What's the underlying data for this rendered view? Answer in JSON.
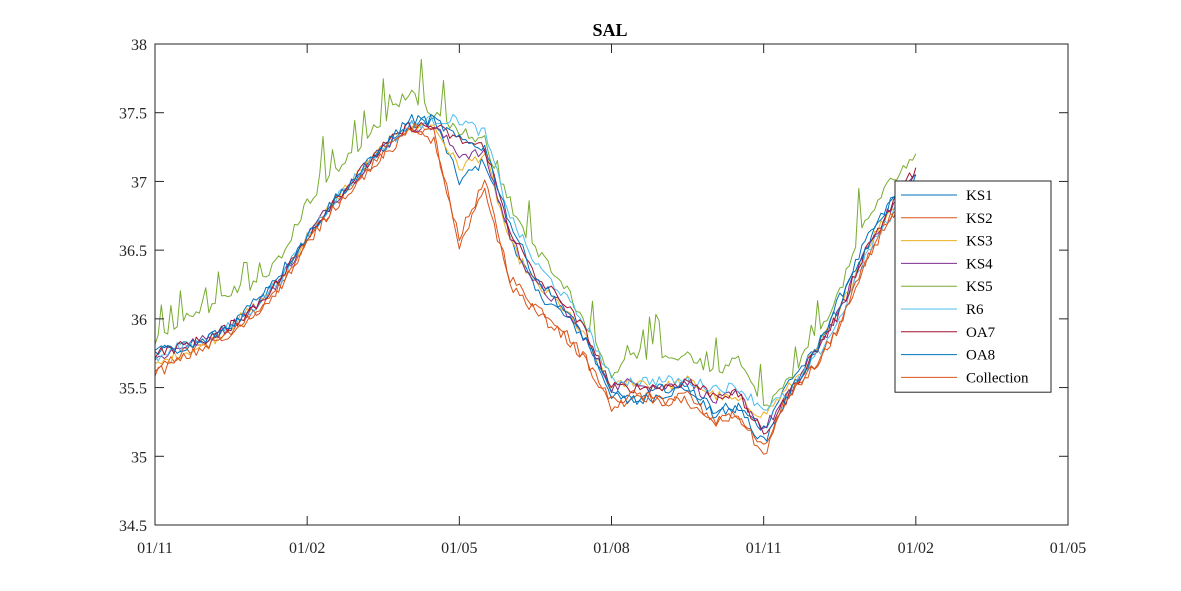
{
  "chart_data": {
    "type": "line",
    "title": "SAL",
    "xlabel": "",
    "ylabel": "",
    "ylim": [
      34.5,
      38
    ],
    "yticks": [
      "34.5",
      "35",
      "35.5",
      "36",
      "36.5",
      "37",
      "37.5",
      "38"
    ],
    "xticks": [
      "01/11",
      "01/02",
      "01/05",
      "01/08",
      "01/11",
      "01/02",
      "01/05"
    ],
    "x_range_months": [
      0,
      18
    ],
    "legend_position": "right",
    "grid": false,
    "x_month_offsets": [
      0,
      0.5,
      1,
      1.5,
      2,
      2.5,
      3,
      3.5,
      4,
      4.5,
      5,
      5.5,
      6,
      6.5,
      7,
      7.5,
      8,
      8.5,
      9,
      9.5,
      10,
      10.5,
      11,
      11.5,
      12,
      12.5,
      13,
      13.5,
      14,
      14.5,
      15
    ],
    "series": [
      {
        "name": "KS1",
        "color": "#0072BD",
        "values": [
          35.75,
          35.8,
          35.85,
          35.95,
          36.1,
          36.3,
          36.6,
          36.85,
          37.05,
          37.25,
          37.4,
          37.45,
          37.0,
          37.15,
          36.6,
          36.2,
          36.05,
          35.85,
          35.45,
          35.4,
          35.45,
          35.5,
          35.3,
          35.35,
          35.2,
          35.55,
          35.75,
          36.15,
          36.55,
          36.85,
          37.05
        ]
      },
      {
        "name": "KS2",
        "color": "#D95319",
        "values": [
          35.6,
          35.75,
          35.8,
          35.9,
          36.05,
          36.25,
          36.55,
          36.8,
          37.0,
          37.2,
          37.35,
          37.3,
          36.6,
          37.0,
          36.3,
          36.1,
          35.95,
          35.7,
          35.35,
          35.45,
          35.4,
          35.4,
          35.25,
          35.3,
          35.05,
          35.45,
          35.65,
          35.95,
          36.4,
          36.75,
          36.9
        ]
      },
      {
        "name": "KS3",
        "color": "#EDB120",
        "values": [
          35.65,
          35.75,
          35.8,
          35.95,
          36.1,
          36.3,
          36.6,
          36.85,
          37.05,
          37.25,
          37.4,
          37.4,
          37.1,
          37.2,
          36.55,
          36.25,
          36.1,
          35.85,
          35.5,
          35.55,
          35.5,
          35.55,
          35.45,
          35.4,
          35.3,
          35.5,
          35.75,
          36.05,
          36.5,
          36.8,
          37.0
        ]
      },
      {
        "name": "KS4",
        "color": "#7E2F8E",
        "values": [
          35.7,
          35.8,
          35.85,
          35.95,
          36.1,
          36.3,
          36.6,
          36.85,
          37.05,
          37.25,
          37.4,
          37.4,
          37.2,
          37.2,
          36.6,
          36.25,
          36.1,
          35.85,
          35.5,
          35.55,
          35.5,
          35.55,
          35.4,
          35.45,
          35.2,
          35.45,
          35.75,
          36.05,
          36.5,
          36.8,
          37.05
        ]
      },
      {
        "name": "KS5",
        "color": "#77AC30",
        "values": [
          35.85,
          36.0,
          36.05,
          36.2,
          36.25,
          36.45,
          36.85,
          37.05,
          37.25,
          37.45,
          37.65,
          37.5,
          37.35,
          37.3,
          36.8,
          36.5,
          36.3,
          35.95,
          35.6,
          35.75,
          35.7,
          35.75,
          35.6,
          35.7,
          35.35,
          35.55,
          35.85,
          36.2,
          36.7,
          37.0,
          37.2
        ]
      },
      {
        "name": "R6",
        "color": "#4DBEEE",
        "values": [
          35.7,
          35.8,
          35.85,
          35.95,
          36.1,
          36.3,
          36.6,
          36.85,
          37.05,
          37.25,
          37.4,
          37.45,
          37.45,
          37.35,
          36.75,
          36.4,
          36.2,
          35.95,
          35.55,
          35.55,
          35.55,
          35.55,
          35.5,
          35.5,
          35.35,
          35.45,
          35.7,
          36.0,
          36.45,
          36.75,
          37.0
        ]
      },
      {
        "name": "OA7",
        "color": "#A2142F",
        "values": [
          35.75,
          35.8,
          35.85,
          35.95,
          36.1,
          36.3,
          36.6,
          36.85,
          37.05,
          37.25,
          37.4,
          37.4,
          37.3,
          37.25,
          36.65,
          36.3,
          36.15,
          35.9,
          35.5,
          35.5,
          35.5,
          35.55,
          35.45,
          35.45,
          35.15,
          35.45,
          35.75,
          36.05,
          36.5,
          36.8,
          37.1
        ]
      },
      {
        "name": "OA8",
        "color": "#0072BD",
        "values": [
          35.8,
          35.75,
          35.85,
          35.95,
          36.15,
          36.35,
          36.6,
          36.85,
          37.05,
          37.25,
          37.45,
          37.45,
          37.3,
          37.25,
          36.7,
          36.3,
          36.1,
          35.85,
          35.45,
          35.4,
          35.5,
          35.5,
          35.35,
          35.35,
          35.1,
          35.45,
          35.75,
          36.1,
          36.5,
          36.85,
          37.05
        ]
      },
      {
        "name": "Collection",
        "color": "#D95319",
        "values": [
          35.6,
          35.7,
          35.8,
          35.9,
          36.05,
          36.25,
          36.55,
          36.8,
          37.0,
          37.2,
          37.4,
          37.35,
          36.5,
          36.95,
          36.25,
          36.05,
          35.9,
          35.7,
          35.4,
          35.45,
          35.4,
          35.45,
          35.25,
          35.3,
          35.0,
          35.45,
          35.65,
          35.95,
          36.4,
          36.75,
          36.85
        ]
      }
    ]
  }
}
